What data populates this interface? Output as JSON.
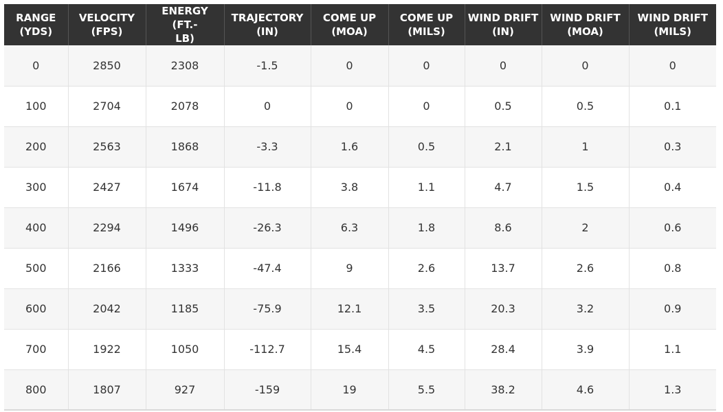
{
  "table": {
    "headers": [
      [
        "RANGE",
        "(YDS)"
      ],
      [
        "VELOCITY",
        "(FPS)"
      ],
      [
        "ENERGY (FT.-",
        "LB)"
      ],
      [
        "TRAJECTORY",
        "(IN)"
      ],
      [
        "COME UP",
        "(MOA)"
      ],
      [
        "COME UP",
        "(MILS)"
      ],
      [
        "WIND DRIFT",
        "(IN)"
      ],
      [
        "WIND DRIFT",
        "(MOA)"
      ],
      [
        "WIND DRIFT",
        "(MILS)"
      ]
    ],
    "rows": [
      [
        "0",
        "2850",
        "2308",
        "-1.5",
        "0",
        "0",
        "0",
        "0",
        "0"
      ],
      [
        "100",
        "2704",
        "2078",
        "0",
        "0",
        "0",
        "0.5",
        "0.5",
        "0.1"
      ],
      [
        "200",
        "2563",
        "1868",
        "-3.3",
        "1.6",
        "0.5",
        "2.1",
        "1",
        "0.3"
      ],
      [
        "300",
        "2427",
        "1674",
        "-11.8",
        "3.8",
        "1.1",
        "4.7",
        "1.5",
        "0.4"
      ],
      [
        "400",
        "2294",
        "1496",
        "-26.3",
        "6.3",
        "1.8",
        "8.6",
        "2",
        "0.6"
      ],
      [
        "500",
        "2166",
        "1333",
        "-47.4",
        "9",
        "2.6",
        "13.7",
        "2.6",
        "0.8"
      ],
      [
        "600",
        "2042",
        "1185",
        "-75.9",
        "12.1",
        "3.5",
        "20.3",
        "3.2",
        "0.9"
      ],
      [
        "700",
        "1922",
        "1050",
        "-112.7",
        "15.4",
        "4.5",
        "28.4",
        "3.9",
        "1.1"
      ],
      [
        "800",
        "1807",
        "927",
        "-159",
        "19",
        "5.5",
        "38.2",
        "4.6",
        "1.3"
      ]
    ]
  }
}
